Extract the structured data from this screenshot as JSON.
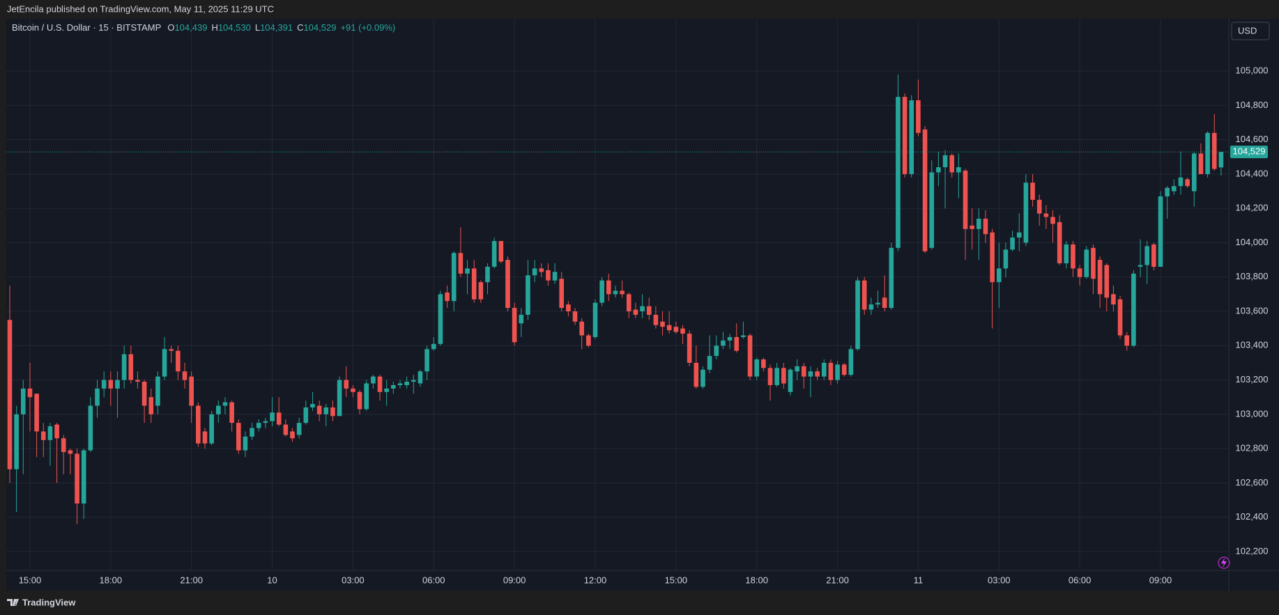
{
  "header": {
    "published": "JetEncila published on TradingView.com, May 11, 2025 11:29 UTC"
  },
  "footer": {
    "brand": "TradingView"
  },
  "currency_button": "USD",
  "chart_data": {
    "type": "candlestick",
    "legend": {
      "symbol": "Bitcoin / U.S. Dollar · 15 · BITSTAMP",
      "items": [
        {
          "key": "O",
          "value": "104,439"
        },
        {
          "key": "H",
          "value": "104,530"
        },
        {
          "key": "L",
          "value": "104,391"
        },
        {
          "key": "C",
          "value": "104,529"
        }
      ],
      "change": "+91 (+0.09%)"
    },
    "up_color": "#26a69a",
    "down_color": "#ef5350",
    "open": [
      103550,
      102680,
      103000,
      103150,
      103120,
      102900,
      102850,
      102940,
      102860,
      102790,
      102770,
      102480,
      102790,
      103050,
      103150,
      103200,
      103150,
      103200,
      103350,
      103200,
      103190,
      103100,
      103050,
      103220,
      103380,
      103370,
      103250,
      103220,
      103050,
      102900,
      102830,
      103000,
      103050,
      103070,
      102950,
      102790,
      102870,
      102920,
      102950,
      102960,
      103010,
      102940,
      102900,
      102880,
      102950,
      103040,
      103050,
      103000,
      103040,
      102990,
      103200,
      103150,
      103130,
      103030,
      103180,
      103220,
      103130,
      103150,
      103170,
      103170,
      103190,
      103180,
      103250,
      103380,
      103410,
      103710,
      103660,
      103940,
      103820,
      103850,
      103770,
      103770,
      103860,
      104010,
      103900,
      103620,
      103530,
      103580,
      103810,
      103850,
      103840,
      103780,
      103790,
      103640,
      103600,
      103540,
      103460,
      103450,
      103650,
      103780,
      103700,
      103720,
      103700,
      103610,
      103600,
      103630,
      103580,
      103540,
      103520,
      103510,
      103500,
      103470,
      103300,
      103160,
      103260,
      103340,
      103400,
      103430,
      103450,
      103450,
      103460,
      103220,
      103320,
      103270,
      103170,
      103270,
      103130,
      103250,
      103280,
      103220,
      103250,
      103220,
      103300,
      103200,
      103290,
      103230,
      103380,
      103780,
      103610,
      103640,
      103680,
      103620,
      103970,
      104850,
      104400,
      104830,
      104660,
      103970,
      104410,
      104440,
      104510,
      104410,
      104420,
      104100,
      104080,
      104140,
      104060,
      103770,
      103850,
      103960,
      104030,
      104000,
      104350,
      104250,
      104170,
      104150,
      104120,
      103880,
      103990,
      103850,
      103800,
      103970,
      103900,
      103870,
      103700,
      103670,
      103460,
      103400,
      103860,
      103870,
      103990,
      103860,
      104270,
      104300,
      104330,
      104370,
      104300,
      104520,
      104400,
      104640,
      104439
    ],
    "high": [
      103750,
      103050,
      103200,
      103300,
      103120,
      102950,
      102950,
      102950,
      102880,
      102800,
      102800,
      102800,
      103100,
      103200,
      103250,
      103250,
      103250,
      103400,
      103400,
      103250,
      103200,
      103150,
      103250,
      103450,
      103400,
      103400,
      103300,
      103250,
      103070,
      102920,
      103020,
      103080,
      103100,
      103080,
      102970,
      102900,
      102950,
      102970,
      102980,
      103100,
      103100,
      102970,
      102920,
      102980,
      103080,
      103130,
      103080,
      103060,
      103080,
      103220,
      103280,
      103170,
      103140,
      103200,
      103230,
      103230,
      103200,
      103190,
      103200,
      103220,
      103230,
      103260,
      103400,
      103450,
      103720,
      103750,
      103950,
      104090,
      103900,
      103900,
      103780,
      103880,
      104030,
      104010,
      103920,
      103650,
      103620,
      103900,
      103900,
      103880,
      103880,
      103880,
      103830,
      103660,
      103620,
      103560,
      103470,
      103670,
      103800,
      103820,
      103750,
      103780,
      103710,
      103650,
      103700,
      103680,
      103630,
      103600,
      103600,
      103540,
      103520,
      103490,
      103400,
      103280,
      103460,
      103460,
      103480,
      103470,
      103530,
      103540,
      103470,
      103330,
      103330,
      103290,
      103300,
      103300,
      103270,
      103320,
      103300,
      103280,
      103270,
      103320,
      103320,
      103310,
      103300,
      103400,
      103800,
      103800,
      103680,
      103720,
      103810,
      104000,
      104980,
      104870,
      104860,
      104950,
      104680,
      104480,
      104530,
      104540,
      104520,
      104520,
      104430,
      104200,
      104200,
      104190,
      104080,
      104000,
      104000,
      104070,
      104170,
      104400,
      104400,
      104280,
      104220,
      104190,
      104160,
      104010,
      104010,
      103870,
      103980,
      103990,
      103920,
      103880,
      103750,
      103690,
      103480,
      103840,
      104020,
      104010,
      104000,
      104300,
      104330,
      104370,
      104530,
      104380,
      104530,
      104580,
      104650,
      104750,
      104530
    ],
    "low": [
      102600,
      102430,
      102650,
      102900,
      102750,
      102750,
      102700,
      102600,
      102650,
      102650,
      102360,
      102390,
      102780,
      102980,
      103100,
      103050,
      102980,
      103150,
      103180,
      103150,
      102950,
      102950,
      103000,
      103200,
      103300,
      103200,
      103150,
      102950,
      102810,
      102800,
      102820,
      102950,
      103000,
      102900,
      102770,
      102750,
      102850,
      102900,
      102920,
      102930,
      102930,
      102870,
      102840,
      102860,
      102940,
      103020,
      102960,
      102930,
      102960,
      102990,
      103100,
      103100,
      103000,
      103020,
      103150,
      103080,
      103050,
      103120,
      103150,
      103150,
      103120,
      103160,
      103200,
      103370,
      103400,
      103620,
      103600,
      103800,
      103700,
      103650,
      103650,
      103700,
      103850,
      103880,
      103600,
      103400,
      103450,
      103550,
      103770,
      103800,
      103750,
      103760,
      103600,
      103570,
      103520,
      103380,
      103390,
      103440,
      103630,
      103660,
      103680,
      103680,
      103560,
      103560,
      103560,
      103550,
      103500,
      103460,
      103470,
      103470,
      103410,
      103280,
      103150,
      103150,
      103240,
      103320,
      103380,
      103380,
      103360,
      103440,
      103200,
      103200,
      103250,
      103080,
      103160,
      103150,
      103110,
      103200,
      103150,
      103100,
      103200,
      103200,
      103170,
      103180,
      103220,
      103220,
      103370,
      103580,
      103580,
      103620,
      103600,
      103610,
      103950,
      104380,
      104380,
      104620,
      103940,
      103960,
      104330,
      104200,
      104380,
      104260,
      103900,
      103960,
      103900,
      104000,
      103500,
      103620,
      103800,
      103950,
      103950,
      103980,
      104210,
      104100,
      104080,
      104000,
      103870,
      103850,
      103800,
      103750,
      103790,
      103700,
      103620,
      103600,
      103600,
      103440,
      103370,
      103390,
      103800,
      103760,
      103840,
      103860,
      104140,
      104280,
      104280,
      104320,
      104210,
      104400,
      104380,
      104420,
      104391
    ],
    "close": [
      102680,
      103000,
      103150,
      103100,
      102900,
      102850,
      102930,
      102860,
      102780,
      102770,
      102480,
      102790,
      103050,
      103150,
      103200,
      103150,
      103200,
      103350,
      103200,
      103190,
      103050,
      103000,
      103220,
      103380,
      103370,
      103250,
      103200,
      103050,
      102830,
      102830,
      103000,
      103050,
      103070,
      102950,
      102790,
      102870,
      102920,
      102950,
      102960,
      103010,
      102940,
      102880,
      102860,
      102950,
      103040,
      103060,
      103000,
      103040,
      102990,
      103200,
      103150,
      103130,
      103030,
      103180,
      103220,
      103130,
      103150,
      103170,
      103180,
      103190,
      103200,
      103250,
      103380,
      103410,
      103700,
      103660,
      103940,
      103820,
      103850,
      103670,
      103670,
      103860,
      104010,
      103890,
      103620,
      103420,
      103580,
      103810,
      103850,
      103830,
      103780,
      103830,
      103620,
      103600,
      103540,
      103460,
      103400,
      103650,
      103780,
      103700,
      103720,
      103700,
      103600,
      103580,
      103630,
      103580,
      103520,
      103510,
      103490,
      103480,
      103470,
      103300,
      103160,
      103260,
      103340,
      103400,
      103430,
      103450,
      103370,
      103460,
      103220,
      103320,
      103270,
      103170,
      103270,
      103180,
      103260,
      103280,
      103220,
      103250,
      103220,
      103300,
      103200,
      103290,
      103230,
      103380,
      103780,
      103610,
      103640,
      103650,
      103620,
      103970,
      104850,
      104400,
      104830,
      104640,
      103950,
      104410,
      104440,
      104510,
      104410,
      104440,
      104080,
      104080,
      104140,
      104050,
      103770,
      103850,
      103960,
      104030,
      104060,
      104350,
      104250,
      104170,
      104150,
      104110,
      103880,
      103990,
      103850,
      103800,
      103960,
      103790,
      103700,
      103680,
      103640,
      103460,
      103400,
      103820,
      103870,
      103980,
      103860,
      104270,
      104320,
      104330,
      104380,
      104330,
      104520,
      104400,
      104640,
      104430,
      104529
    ],
    "last_price": {
      "value": 104529,
      "label": "104,529"
    },
    "xticks": [
      {
        "value": 3,
        "label": "15:00"
      },
      {
        "value": 15,
        "label": "18:00"
      },
      {
        "value": 27,
        "label": "21:00"
      },
      {
        "value": 39,
        "label": "10"
      },
      {
        "value": 51,
        "label": "03:00"
      },
      {
        "value": 63,
        "label": "06:00"
      },
      {
        "value": 75,
        "label": "09:00"
      },
      {
        "value": 87,
        "label": "12:00"
      },
      {
        "value": 99,
        "label": "15:00"
      },
      {
        "value": 111,
        "label": "18:00"
      },
      {
        "value": 123,
        "label": "21:00"
      },
      {
        "value": 135,
        "label": "11"
      },
      {
        "value": 147,
        "label": "03:00"
      },
      {
        "value": 159,
        "label": "06:00"
      },
      {
        "value": 171,
        "label": "09:00"
      }
    ],
    "ylim": [
      102090,
      105305
    ],
    "yticks": [
      {
        "value": 102200,
        "label": "102,200"
      },
      {
        "value": 102400,
        "label": "102,400"
      },
      {
        "value": 102600,
        "label": "102,600"
      },
      {
        "value": 102800,
        "label": "102,800"
      },
      {
        "value": 103000,
        "label": "103,000"
      },
      {
        "value": 103200,
        "label": "103,200"
      },
      {
        "value": 103400,
        "label": "103,400"
      },
      {
        "value": 103600,
        "label": "103,600"
      },
      {
        "value": 103800,
        "label": "103,800"
      },
      {
        "value": 104000,
        "label": "104,000"
      },
      {
        "value": 104200,
        "label": "104,200"
      },
      {
        "value": 104400,
        "label": "104,400"
      },
      {
        "value": 104600,
        "label": "104,600"
      },
      {
        "value": 104800,
        "label": "104,800"
      },
      {
        "value": 105000,
        "label": "105,000"
      }
    ],
    "grid": true
  }
}
